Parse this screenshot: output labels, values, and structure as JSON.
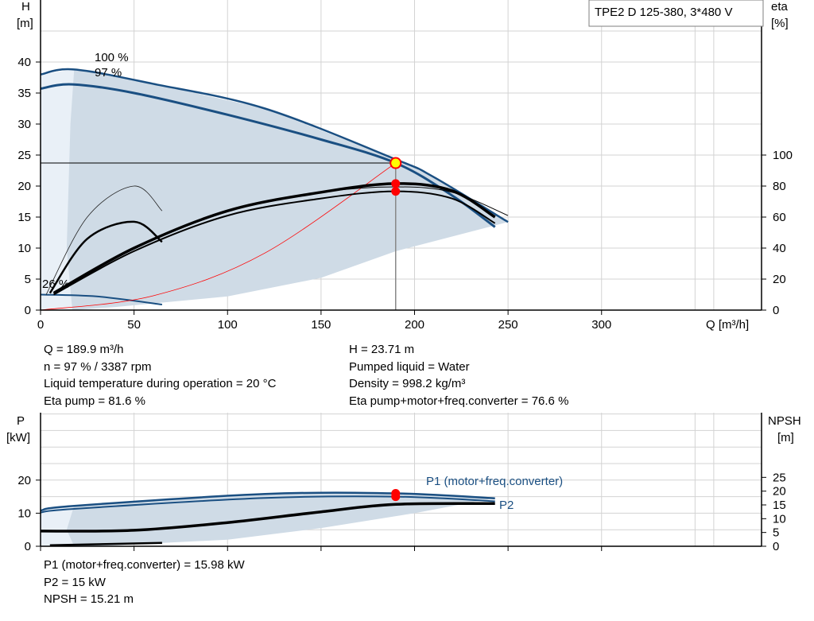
{
  "title_box": "TPE2 D 125-380, 3*480 V",
  "colors": {
    "curve": "#1a4f82",
    "band_fill": "#cfdbe6",
    "band_fill_light": "#e9f0f7",
    "op_point": "#ff0000",
    "op_marker": "#ffff00",
    "eta_line": "#ff0000",
    "grid": "#d3d3d3"
  },
  "top": {
    "y_axis": {
      "label_line1": "H",
      "label_line2": "[m]"
    },
    "right_axis": {
      "label_line1": "eta",
      "label_line2": "[%]"
    },
    "x_axis": {
      "label": "Q [m³/h]"
    },
    "speed_labels": [
      "100 %",
      "97 %",
      "26 %"
    ]
  },
  "op_info_left": [
    "Q = 189.9 m³/h",
    "n = 97 % / 3387 rpm",
    "Liquid temperature during operation = 20 °C",
    "Eta pump = 81.6 %"
  ],
  "op_info_right": [
    "H = 23.71 m",
    "Pumped liquid = Water",
    "Density = 998.2 kg/m³",
    "Eta pump+motor+freq.converter = 76.6 %"
  ],
  "bottom": {
    "left_axis": {
      "label_line1": "P",
      "label_line2": "[kW]"
    },
    "right_axis": {
      "label_line1": "NPSH",
      "label_line2": "[m]"
    },
    "curve_labels": {
      "p1": "P1 (motor+freq.converter)",
      "p2": "P2"
    }
  },
  "bottom_info": [
    "P1 (motor+freq.converter) = 15.98 kW",
    "P2 = 15 kW",
    "NPSH = 15.21 m"
  ],
  "chart_data": [
    {
      "type": "line",
      "name": "QH",
      "xlim": [
        0,
        350
      ],
      "ylim": [
        0,
        45
      ],
      "right_ylim": [
        0,
        100
      ],
      "x_ticks": [
        0,
        50,
        100,
        150,
        200,
        250,
        300
      ],
      "y_ticks": [
        0,
        5,
        10,
        15,
        20,
        25,
        30,
        35,
        40
      ],
      "right_ticks": [
        0,
        20,
        40,
        60,
        80,
        100
      ],
      "grid": true,
      "series": [
        {
          "name": "100 %",
          "x": [
            0,
            18,
            60,
            120,
            190,
            210,
            250
          ],
          "y": [
            38.0,
            38.8,
            36.5,
            32.5,
            24.3,
            21.5,
            14.2
          ]
        },
        {
          "name": "97 %",
          "x": [
            0,
            17,
            50,
            100,
            150,
            190,
            220,
            243
          ],
          "y": [
            35.7,
            36.4,
            35.0,
            31.5,
            27.5,
            23.71,
            18.5,
            13.4
          ]
        },
        {
          "name": "eta 100 %",
          "x": [
            8,
            50,
            100,
            150,
            190,
            220,
            250
          ],
          "y": [
            12,
            40,
            64,
            76,
            79.5,
            76,
            61
          ]
        },
        {
          "name": "eta 97 %",
          "x": [
            7,
            50,
            100,
            150,
            190,
            220,
            243
          ],
          "y": [
            11,
            40,
            64,
            76,
            81.6,
            77,
            60
          ]
        },
        {
          "name": "eta total",
          "x": [
            7,
            50,
            100,
            150,
            190,
            220,
            243
          ],
          "y": [
            10,
            38,
            61,
            72,
            76.6,
            72,
            56
          ]
        },
        {
          "name": "eta 26 % thin",
          "x": [
            3,
            25,
            50,
            65
          ],
          "y": [
            10,
            60,
            80,
            64
          ]
        },
        {
          "name": "eta 26 %",
          "x": [
            5,
            25,
            50,
            65
          ],
          "y": [
            11,
            46,
            57,
            44
          ]
        },
        {
          "name": "26 %",
          "x": [
            0,
            30,
            65
          ],
          "y": [
            2.5,
            2.2,
            0.9
          ]
        },
        {
          "name": "system",
          "x": [
            0,
            60,
            120,
            189.9
          ],
          "y": [
            0,
            2.3,
            9.2,
            23.71
          ]
        }
      ],
      "operating_point": {
        "q": 189.9,
        "h": 23.71,
        "eta_pump": 81.6,
        "eta_total": 76.6
      }
    },
    {
      "type": "line",
      "name": "Power / NPSH",
      "xlim": [
        0,
        350
      ],
      "ylim": [
        0,
        25
      ],
      "right_ylim": [
        0,
        25
      ],
      "y_ticks": [
        0,
        10,
        20
      ],
      "right_ticks": [
        0,
        5,
        10,
        15,
        20,
        25
      ],
      "grid": true,
      "series": [
        {
          "name": "P1 (motor+freq.converter)",
          "x": [
            0,
            18,
            120,
            190,
            243
          ],
          "y": [
            10.8,
            12.2,
            15.8,
            15.98,
            14.5
          ]
        },
        {
          "name": "P2",
          "x": [
            0,
            18,
            120,
            190,
            243
          ],
          "y": [
            10.2,
            11.3,
            14.6,
            15.0,
            13.6
          ]
        },
        {
          "name": "NPSH",
          "x": [
            0,
            50,
            100,
            150,
            190,
            243
          ],
          "y": [
            5.5,
            5.8,
            8.6,
            12.5,
            15.21,
            15.5
          ]
        },
        {
          "name": "P 26 %",
          "x": [
            5,
            65
          ],
          "y": [
            0.3,
            1.0
          ]
        }
      ],
      "operating_point": {
        "p1": 15.98,
        "p2": 15.0,
        "npsh": 15.21
      }
    }
  ]
}
